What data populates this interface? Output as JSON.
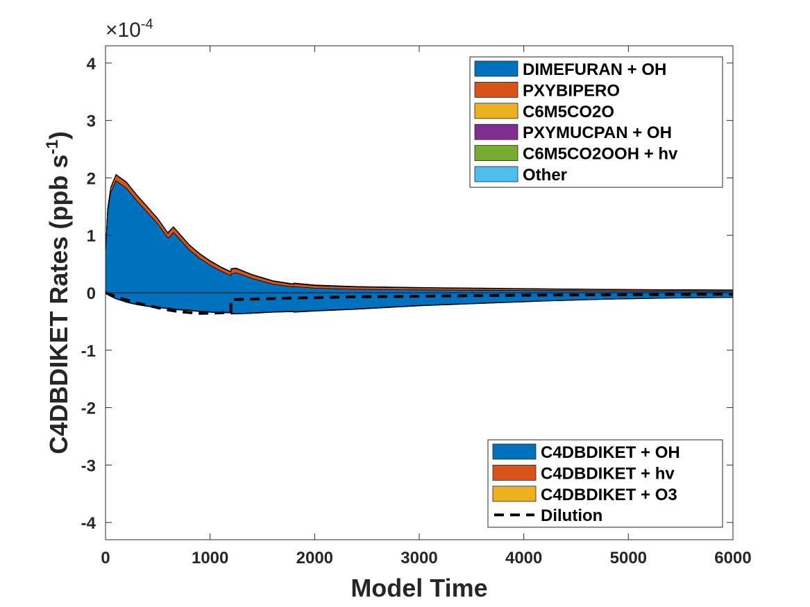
{
  "chart_data": {
    "type": "area",
    "xlabel": "Model Time",
    "ylabel_main": "C4DBDIKET Rates (ppb s",
    "ylabel_sup": "-1",
    "ylabel_close": ")",
    "exponent_label": "×10",
    "exponent_sup": "-4",
    "xlim": [
      0,
      6000
    ],
    "ylim": [
      -4.3,
      4.3
    ],
    "xticks": [
      0,
      1000,
      2000,
      3000,
      4000,
      5000,
      6000
    ],
    "yticks": [
      -4,
      -3,
      -2,
      -1,
      0,
      1,
      2,
      3,
      4
    ],
    "x": [
      0,
      20,
      50,
      100,
      200,
      300,
      400,
      500,
      599,
      600,
      650,
      700,
      800,
      900,
      1000,
      1100,
      1199,
      1200,
      1250,
      1400,
      1600,
      1799,
      1800,
      2000,
      2400,
      3000,
      3600,
      4200,
      4800,
      5400,
      6000
    ],
    "production": [
      {
        "name": "DIMEFURAN + OH",
        "color": "#0072BD",
        "values": [
          0.7,
          1.4,
          1.75,
          1.95,
          1.82,
          1.6,
          1.4,
          1.2,
          0.95,
          0.95,
          1.05,
          0.95,
          0.75,
          0.6,
          0.48,
          0.38,
          0.3,
          0.33,
          0.35,
          0.25,
          0.15,
          0.1,
          0.11,
          0.08,
          0.06,
          0.05,
          0.045,
          0.04,
          0.035,
          0.03,
          0.025
        ]
      },
      {
        "name": "PXYBIPERO",
        "color": "#D95319",
        "values": [
          0.02,
          0.05,
          0.08,
          0.1,
          0.1,
          0.095,
          0.09,
          0.085,
          0.08,
          0.1,
          0.09,
          0.085,
          0.08,
          0.075,
          0.07,
          0.065,
          0.06,
          0.08,
          0.07,
          0.06,
          0.05,
          0.045,
          0.05,
          0.045,
          0.04,
          0.035,
          0.03,
          0.025,
          0.02,
          0.02,
          0.02
        ]
      },
      {
        "name": "C6M5CO2O",
        "color": "#EDB120",
        "values": [
          0,
          0.001,
          0.002,
          0.003,
          0.003,
          0.003,
          0.003,
          0.003,
          0.003,
          0.003,
          0.003,
          0.003,
          0.003,
          0.003,
          0.003,
          0.003,
          0.003,
          0.003,
          0.003,
          0.003,
          0.003,
          0.003,
          0.003,
          0.003,
          0.003,
          0.002,
          0.002,
          0.002,
          0.002,
          0.002,
          0.002
        ]
      },
      {
        "name": "PXYMUCPAN + OH",
        "color": "#7E2F8E",
        "values": [
          0,
          0.001,
          0.001,
          0.002,
          0.002,
          0.002,
          0.002,
          0.002,
          0.002,
          0.002,
          0.002,
          0.002,
          0.002,
          0.002,
          0.002,
          0.002,
          0.002,
          0.002,
          0.002,
          0.002,
          0.002,
          0.002,
          0.002,
          0.002,
          0.002,
          0.002,
          0.001,
          0.001,
          0.001,
          0.001,
          0.001
        ]
      },
      {
        "name": "C6M5CO2OOH + hv",
        "color": "#77AC30",
        "values": [
          0,
          0.001,
          0.001,
          0.002,
          0.002,
          0.002,
          0.002,
          0.002,
          0.002,
          0.002,
          0.002,
          0.002,
          0.002,
          0.002,
          0.002,
          0.002,
          0.002,
          0.002,
          0.002,
          0.002,
          0.002,
          0.002,
          0.002,
          0.002,
          0.002,
          0.001,
          0.001,
          0.001,
          0.001,
          0.001,
          0.001
        ]
      },
      {
        "name": "Other",
        "color": "#4DBEEE",
        "values": [
          0,
          0.002,
          0.003,
          0.004,
          0.004,
          0.004,
          0.004,
          0.004,
          0.004,
          0.004,
          0.004,
          0.004,
          0.004,
          0.004,
          0.004,
          0.004,
          0.004,
          0.004,
          0.004,
          0.004,
          0.004,
          0.004,
          0.004,
          0.004,
          0.003,
          0.003,
          0.003,
          0.002,
          0.002,
          0.002,
          0.002
        ]
      }
    ],
    "loss": [
      {
        "name": "C4DBDIKET + OH",
        "color": "#0072BD",
        "values": [
          0,
          -0.03,
          -0.06,
          -0.1,
          -0.16,
          -0.2,
          -0.23,
          -0.25,
          -0.27,
          -0.26,
          -0.28,
          -0.29,
          -0.3,
          -0.32,
          -0.33,
          -0.34,
          -0.34,
          -0.36,
          -0.36,
          -0.35,
          -0.33,
          -0.32,
          -0.33,
          -0.31,
          -0.28,
          -0.22,
          -0.18,
          -0.14,
          -0.11,
          -0.09,
          -0.08
        ]
      },
      {
        "name": "C4DBDIKET + hv",
        "color": "#D95319",
        "values": [
          0,
          -0.003,
          -0.004,
          -0.005,
          -0.006,
          -0.007,
          -0.007,
          -0.008,
          -0.008,
          -0.008,
          -0.008,
          -0.008,
          -0.009,
          -0.009,
          -0.009,
          -0.009,
          -0.009,
          -0.009,
          -0.009,
          -0.009,
          -0.009,
          -0.009,
          -0.009,
          -0.009,
          -0.008,
          -0.007,
          -0.006,
          -0.005,
          -0.004,
          -0.003,
          -0.003
        ]
      },
      {
        "name": "C4DBDIKET + O3",
        "color": "#EDB120",
        "values": [
          0,
          -0.001,
          -0.001,
          -0.002,
          -0.002,
          -0.002,
          -0.002,
          -0.002,
          -0.002,
          -0.002,
          -0.002,
          -0.002,
          -0.002,
          -0.002,
          -0.002,
          -0.002,
          -0.002,
          -0.002,
          -0.002,
          -0.002,
          -0.002,
          -0.002,
          -0.002,
          -0.002,
          -0.002,
          -0.002,
          -0.001,
          -0.001,
          -0.001,
          -0.001,
          -0.001
        ]
      }
    ],
    "dilution": {
      "name": "Dilution",
      "x": [
        0,
        100,
        300,
        500,
        600,
        700,
        900,
        1100,
        1199,
        1200,
        1400,
        1800,
        2400,
        3000,
        3600,
        4200,
        4800,
        5400,
        6000
      ],
      "values": [
        0,
        -0.07,
        -0.18,
        -0.26,
        -0.3,
        -0.33,
        -0.36,
        -0.35,
        -0.34,
        -0.12,
        -0.11,
        -0.09,
        -0.07,
        -0.06,
        -0.05,
        -0.04,
        -0.035,
        -0.03,
        -0.025
      ]
    },
    "legend_production_placement": "top-right",
    "legend_loss_placement": "bottom-right",
    "grid": false
  }
}
